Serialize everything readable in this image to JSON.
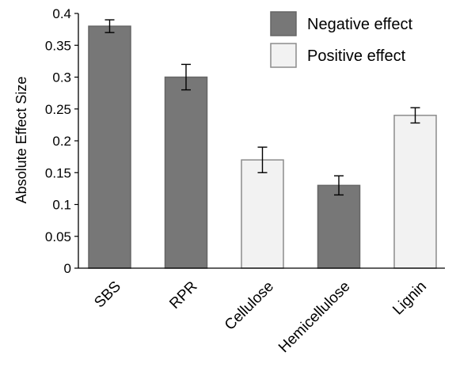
{
  "chart_data": {
    "type": "bar",
    "title": "",
    "xlabel": "",
    "ylabel": "Absolute Effect Size",
    "ylim": [
      0,
      0.4
    ],
    "yticks": [
      "0",
      "0.05",
      "0.1",
      "0.15",
      "0.2",
      "0.25",
      "0.3",
      "0.35",
      "0.4"
    ],
    "grid": false,
    "legend_position": "top-right",
    "categories": [
      "SBS",
      "RPR",
      "Cellulose",
      "Hemicellulose",
      "Lignin"
    ],
    "values": [
      0.38,
      0.3,
      0.17,
      0.13,
      0.24
    ],
    "errors": [
      0.01,
      0.02,
      0.02,
      0.015,
      0.012
    ],
    "effect": [
      "Negative effect",
      "Negative effect",
      "Positive effect",
      "Negative effect",
      "Positive effect"
    ],
    "legend": [
      {
        "label": "Negative effect",
        "fill": "#777777",
        "stroke": "#666666"
      },
      {
        "label": "Positive effect",
        "fill": "#f2f2f2",
        "stroke": "#8c8c8c"
      }
    ]
  }
}
